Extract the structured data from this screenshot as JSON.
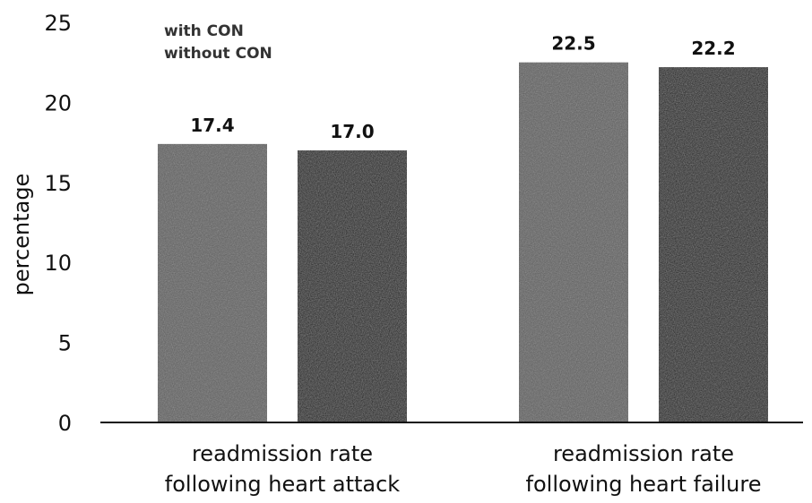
{
  "chart_data": {
    "type": "bar",
    "title": "",
    "xlabel": "",
    "ylabel": "percentage",
    "ylim": [
      0,
      25
    ],
    "yticks": [
      0,
      5,
      10,
      15,
      20,
      25
    ],
    "grid": false,
    "legend_position": "top-left",
    "categories": [
      [
        "readmission rate",
        "following heart attack"
      ],
      [
        "readmission rate",
        "following heart failure"
      ]
    ],
    "series": [
      {
        "name": "with CON",
        "values": [
          17.4,
          22.5
        ],
        "value_labels": [
          "17.4",
          "22.5"
        ],
        "color": "#5e5e5e"
      },
      {
        "name": "without CON",
        "values": [
          17.0,
          22.2
        ],
        "value_labels": [
          "17.0",
          "22.2"
        ],
        "color": "#141414"
      }
    ]
  }
}
